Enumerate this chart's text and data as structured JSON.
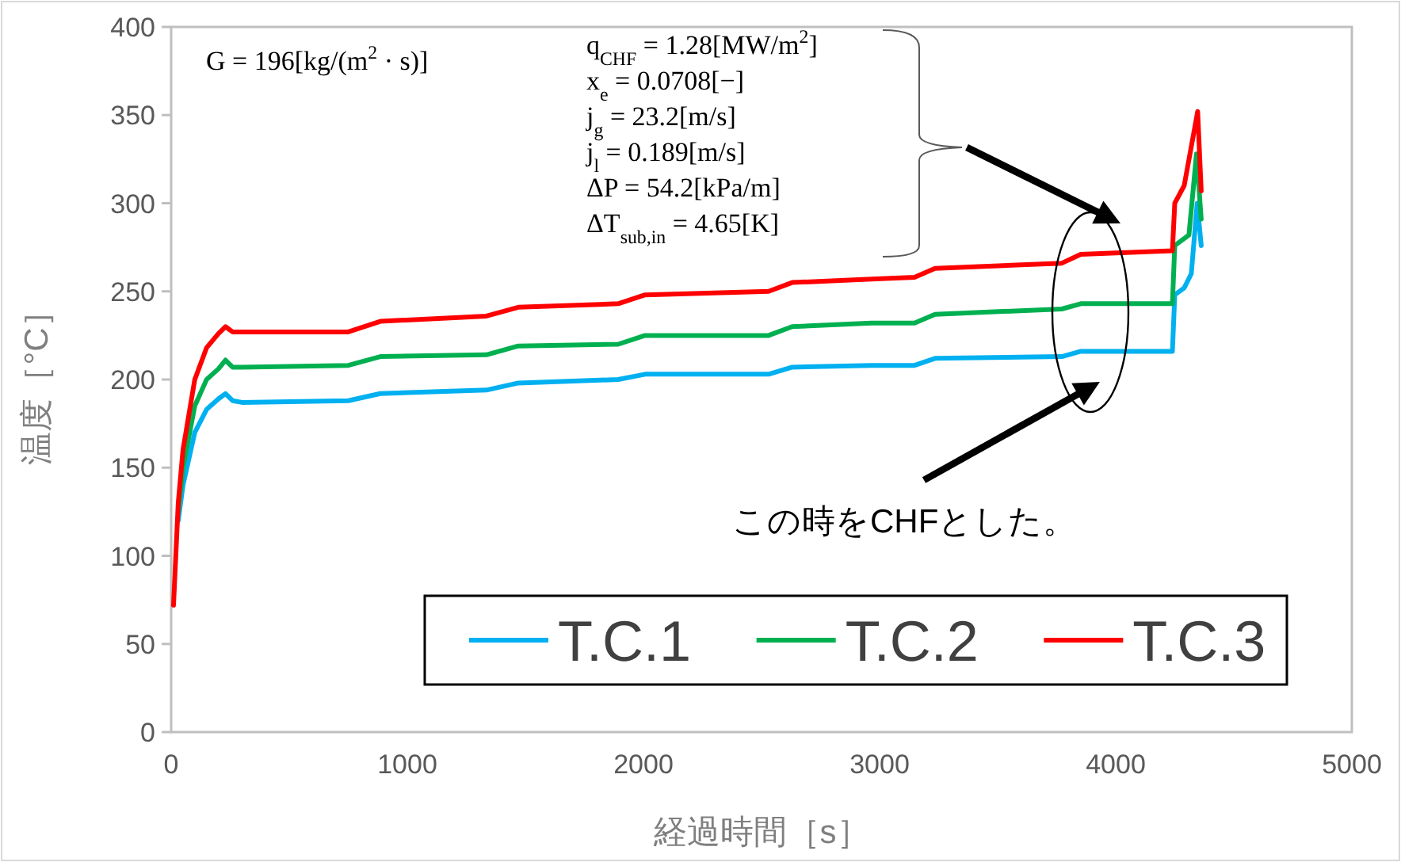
{
  "chart_data": {
    "type": "line",
    "xlabel": "経過時間［s］",
    "ylabel": "温度［°C］",
    "xlim": [
      0,
      5000
    ],
    "ylim": [
      0,
      400
    ],
    "xticks": [
      0,
      1000,
      2000,
      3000,
      4000,
      5000
    ],
    "yticks": [
      0,
      50,
      100,
      150,
      200,
      250,
      300,
      350,
      400
    ],
    "legend": "bottom right",
    "series": [
      {
        "name": "T.C.1",
        "color": "#00b0f0",
        "x": [
          30,
          50,
          100,
          150,
          200,
          230,
          260,
          300,
          750,
          886,
          1335,
          1470,
          1893,
          2007,
          2530,
          2630,
          2966,
          3148,
          3235,
          3772,
          3852,
          4240,
          4250,
          4290,
          4320,
          4345,
          4362
        ],
        "values": [
          120,
          140,
          170,
          183,
          189,
          192,
          188,
          187,
          188,
          192,
          194,
          198,
          200,
          203,
          203,
          207,
          208,
          208,
          212,
          213,
          216,
          216,
          248,
          252,
          260,
          300,
          276
        ]
      },
      {
        "name": "T.C.2",
        "color": "#00b050",
        "x": [
          30,
          50,
          100,
          150,
          200,
          230,
          260,
          300,
          750,
          886,
          1335,
          1470,
          1893,
          2007,
          2530,
          2630,
          2966,
          3148,
          3235,
          3772,
          3852,
          4240,
          4250,
          4310,
          4342,
          4362
        ],
        "values": [
          125,
          150,
          185,
          200,
          206,
          211,
          207,
          207,
          208,
          213,
          214,
          219,
          220,
          225,
          225,
          230,
          232,
          232,
          237,
          240,
          243,
          243,
          276,
          282,
          328,
          291
        ]
      },
      {
        "name": "T.C.3",
        "color": "#ff0000",
        "x": [
          10,
          30,
          50,
          100,
          150,
          200,
          230,
          260,
          300,
          750,
          886,
          1335,
          1470,
          1893,
          2007,
          2530,
          2630,
          2966,
          3148,
          3235,
          3772,
          3852,
          4240,
          4250,
          4290,
          4347,
          4362
        ],
        "values": [
          72,
          130,
          160,
          200,
          218,
          226,
          230,
          227,
          227,
          227,
          233,
          236,
          241,
          243,
          248,
          250,
          255,
          257,
          258,
          263,
          266,
          271,
          273,
          300,
          310,
          352,
          307
        ]
      }
    ],
    "annotations": [
      "G = 196[kg/(m$^{2}$ · s)]",
      "q$_{CHF}$ = 1.28[MW/m$^{2}$]",
      "x$_{e}$ = 0.0708[−]",
      "j$_{g}$ = 23.2[m/s]",
      "j$_{l}$ = 0.189[m/s]",
      "ΔP = 54.2[kPa/m]",
      "ΔT$_{sub,in}$ = 4.65[K]",
      "この時をCHFとした。"
    ]
  }
}
